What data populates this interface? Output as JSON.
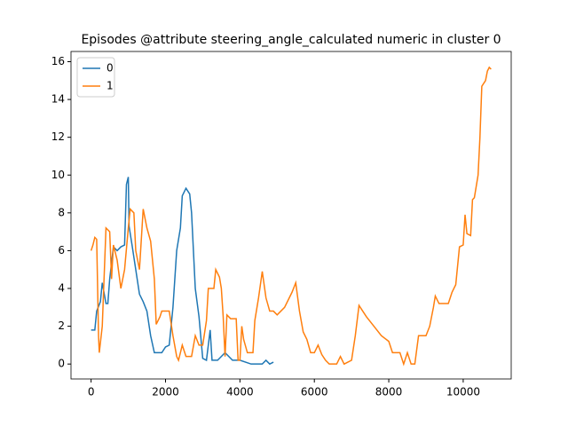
{
  "chart_data": {
    "type": "line",
    "title": "Episodes @attribute steering_angle_calculated numeric in cluster 0",
    "xlim": [
      -540,
      11290
    ],
    "ylim": [
      -0.79,
      16.54
    ],
    "xticks": [
      0,
      2000,
      4000,
      6000,
      8000,
      10000
    ],
    "yticks": [
      0,
      2,
      4,
      6,
      8,
      10,
      12,
      14,
      16
    ],
    "legend": "upper left",
    "series": [
      {
        "name": "0",
        "color": "#1f77b4",
        "x": [
          0,
          100,
          150,
          250,
          300,
          400,
          450,
          500,
          600,
          700,
          800,
          900,
          950,
          1000,
          1020,
          1100,
          1200,
          1300,
          1400,
          1500,
          1600,
          1700,
          1900,
          2000,
          2100,
          2200,
          2300,
          2400,
          2450,
          2550,
          2650,
          2700,
          2800,
          2900,
          3000,
          3100,
          3200,
          3250,
          3400,
          3600,
          3800,
          4000,
          4300,
          4600,
          4700,
          4800,
          4900
        ],
        "values": [
          1.8,
          1.8,
          2.8,
          3.3,
          4.3,
          3.2,
          3.2,
          4.5,
          6.2,
          6.0,
          6.2,
          6.3,
          9.5,
          9.9,
          7.3,
          6.3,
          5.0,
          3.7,
          3.3,
          2.8,
          1.5,
          0.6,
          0.6,
          0.9,
          1.0,
          3.0,
          6.0,
          7.2,
          8.9,
          9.3,
          9.0,
          8.0,
          4.0,
          2.5,
          0.3,
          0.2,
          1.8,
          0.2,
          0.2,
          0.6,
          0.2,
          0.2,
          0,
          0,
          0.2,
          0,
          0.1
        ]
      },
      {
        "name": "1",
        "color": "#ff7f0e",
        "x": [
          0,
          50,
          100,
          150,
          200,
          220,
          300,
          400,
          500,
          550,
          600,
          700,
          800,
          900,
          1000,
          1050,
          1150,
          1200,
          1300,
          1400,
          1500,
          1600,
          1700,
          1750,
          1850,
          1900,
          2100,
          2200,
          2300,
          2350,
          2450,
          2550,
          2700,
          2800,
          2900,
          3000,
          3100,
          3150,
          3300,
          3350,
          3450,
          3500,
          3550,
          3600,
          3650,
          3750,
          3900,
          3950,
          4000,
          4050,
          4100,
          4200,
          4350,
          4400,
          4500,
          4600,
          4700,
          4800,
          4900,
          5000,
          5200,
          5400,
          5500,
          5600,
          5700,
          5800,
          5900,
          6000,
          6100,
          6200,
          6300,
          6400,
          6600,
          6700,
          6800,
          7000,
          7100,
          7200,
          7400,
          7600,
          7800,
          8000,
          8100,
          8300,
          8400,
          8500,
          8600,
          8700,
          8800,
          9000,
          9100,
          9200,
          9250,
          9350,
          9600,
          9700,
          9800,
          9900,
          10000,
          10050,
          10100,
          10200,
          10250,
          10300,
          10400,
          10450,
          10500,
          10600,
          10650,
          10700,
          10750
        ],
        "values": [
          6.0,
          6.3,
          6.7,
          6.6,
          1.5,
          0.6,
          2.0,
          7.2,
          7.0,
          4.5,
          6.3,
          5.5,
          4.0,
          5.0,
          7.2,
          8.2,
          8.0,
          6.0,
          5.0,
          8.2,
          7.2,
          6.5,
          4.5,
          2.1,
          2.5,
          2.8,
          2.8,
          1.5,
          0.4,
          0.2,
          1.0,
          0.4,
          0.4,
          1.5,
          1.0,
          1.0,
          2.3,
          4.0,
          4.0,
          5.0,
          4.6,
          4.0,
          2.5,
          0.4,
          2.6,
          2.4,
          2.4,
          0.2,
          0.2,
          2.0,
          1.3,
          0.6,
          0.6,
          2.3,
          3.5,
          4.9,
          3.5,
          2.8,
          2.8,
          2.6,
          3.0,
          3.8,
          4.3,
          2.8,
          1.7,
          1.3,
          0.6,
          0.6,
          1.0,
          0.5,
          0.2,
          0,
          0,
          0.4,
          0,
          0.2,
          1.5,
          3.1,
          2.5,
          2.0,
          1.5,
          1.2,
          0.6,
          0.6,
          0,
          0.6,
          0,
          0,
          1.5,
          1.5,
          2.0,
          3.0,
          3.6,
          3.2,
          3.2,
          3.8,
          4.2,
          6.2,
          6.3,
          7.9,
          6.9,
          6.8,
          8.7,
          8.8,
          10.0,
          12.0,
          14.7,
          15.0,
          15.5,
          15.7,
          15.6
        ]
      }
    ]
  }
}
